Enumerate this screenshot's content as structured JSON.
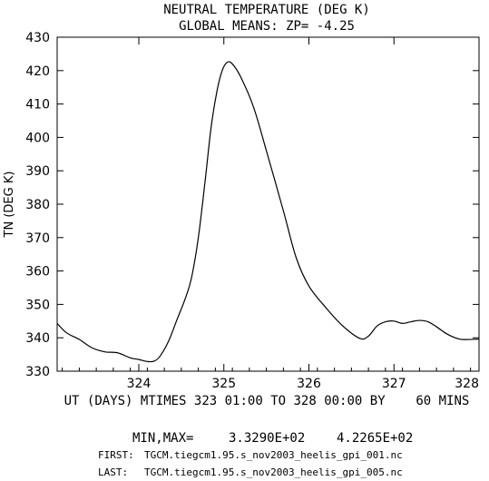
{
  "chart_data": {
    "type": "line",
    "title": "NEUTRAL TEMPERATURE (DEG K)",
    "subtitle": "GLOBAL MEANS: ZP= -4.25",
    "ylabel": "TN (DEG K)",
    "xlabel": "UT (DAYS) MTIMES 323 01:00 TO 328 00:00 BY    60 MINS",
    "xlim": [
      323.04,
      328.0
    ],
    "ylim": [
      330,
      430
    ],
    "x_ticks": [
      324,
      325,
      326,
      327,
      328
    ],
    "y_ticks": [
      330,
      340,
      350,
      360,
      370,
      380,
      390,
      400,
      410,
      420,
      430
    ],
    "grid": false,
    "series": [
      {
        "x": [
          323.04,
          323.15,
          323.3,
          323.45,
          323.6,
          323.75,
          323.9,
          324.0,
          324.1,
          324.18,
          324.25,
          324.35,
          324.45,
          324.55,
          324.62,
          324.7,
          324.78,
          324.85,
          324.92,
          324.98,
          325.04,
          325.1,
          325.2,
          325.35,
          325.5,
          325.7,
          325.85,
          326.0,
          326.2,
          326.4,
          326.6,
          326.7,
          326.8,
          326.9,
          327.0,
          327.1,
          327.2,
          327.3,
          327.4,
          327.5,
          327.6,
          327.7,
          327.8,
          328.0
        ],
        "values": [
          344.3,
          341.5,
          339.5,
          337.0,
          335.8,
          335.5,
          334.0,
          333.5,
          332.9,
          333.0,
          334.5,
          339.0,
          345.5,
          352.0,
          358.0,
          370.0,
          387.0,
          403.0,
          414.0,
          420.0,
          422.5,
          422.0,
          418.0,
          409.0,
          396.0,
          378.0,
          364.0,
          355.5,
          349.0,
          343.5,
          339.8,
          340.5,
          343.5,
          344.8,
          345.0,
          344.3,
          344.8,
          345.2,
          344.8,
          343.3,
          341.5,
          340.2,
          339.5,
          339.6
        ]
      }
    ],
    "min_max_label": "MIN,MAX=",
    "min_value": "3.3290E+02",
    "max_value": "4.2265E+02"
  },
  "footer": {
    "first_label": "FIRST:",
    "first_file": "TGCM.tiegcm1.95.s_nov2003_heelis_gpi_001.nc",
    "last_label": "LAST:",
    "last_file": "TGCM.tiegcm1.95.s_nov2003_heelis_gpi_005.nc"
  }
}
